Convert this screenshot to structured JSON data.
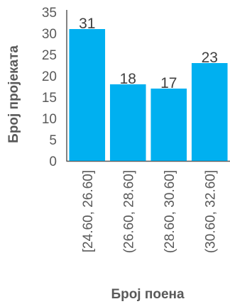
{
  "chart_data": {
    "type": "bar",
    "categories": [
      "[24.60, 26.60]",
      "(26.60, 28.60]",
      "(28.60, 30.60]",
      "(30.60, 32.60]"
    ],
    "values": [
      31,
      18,
      17,
      23
    ],
    "xlabel": "Број поена",
    "ylabel": "Број пројеката",
    "ylim": [
      0,
      35
    ],
    "yticks": [
      0,
      5,
      10,
      15,
      20,
      25,
      30,
      35
    ],
    "data_labels": true,
    "grid": false,
    "legend": "none",
    "colors": {
      "bar": "#00B0F0",
      "axis": "#595959",
      "text": "#595959"
    }
  }
}
